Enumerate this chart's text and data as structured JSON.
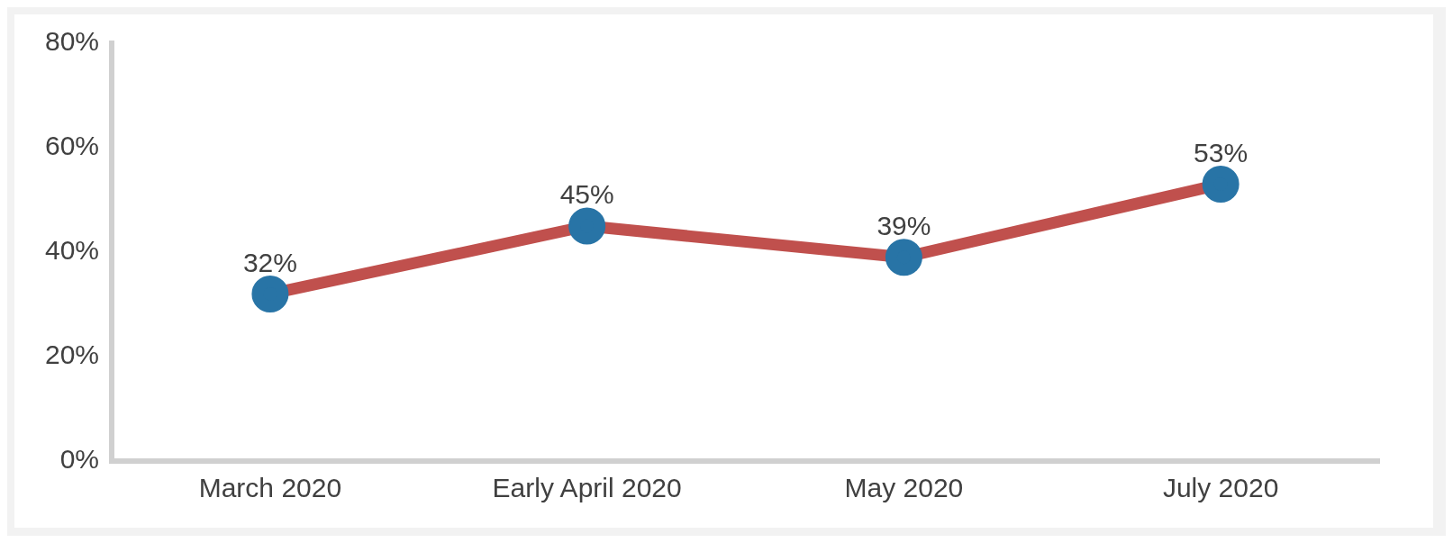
{
  "chart_data": {
    "type": "line",
    "categories": [
      "March 2020",
      "Early April 2020",
      "May 2020",
      "July 2020"
    ],
    "series": [
      {
        "color": "#c0504d",
        "colors": [
          "#2874a6",
          "#2874a6",
          "#2874a6",
          "#2874a6"
        ],
        "values": [
          32,
          45,
          39,
          53
        ],
        "value_labels": [
          "32%",
          "45%",
          "39%",
          "53%"
        ]
      }
    ],
    "ylim": [
      0,
      80
    ],
    "yticks": [
      {
        "value": 0,
        "label": "0%"
      },
      {
        "value": 20,
        "label": "20%"
      },
      {
        "value": 40,
        "label": "40%"
      },
      {
        "value": 60,
        "label": "60%"
      },
      {
        "value": 80,
        "label": "80%"
      }
    ],
    "grid": false,
    "legend": false,
    "marker": "circle",
    "line_style": "solid"
  }
}
